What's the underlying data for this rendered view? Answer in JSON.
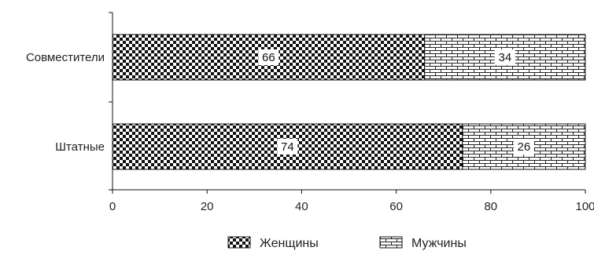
{
  "chart_data": {
    "type": "bar",
    "orientation": "horizontal",
    "stacked": true,
    "categories": [
      "Совместители",
      "Штатные"
    ],
    "series": [
      {
        "name": "Женщины",
        "values": [
          66,
          74
        ],
        "pattern": "checkerboard"
      },
      {
        "name": "Мужчины",
        "values": [
          34,
          26
        ],
        "pattern": "brick"
      }
    ],
    "data_labels": [
      [
        "66",
        "74"
      ],
      [
        "34",
        "26"
      ]
    ],
    "xlim": [
      0,
      100
    ],
    "xticks": [
      0,
      20,
      40,
      60,
      80,
      100
    ],
    "xtick_labels": [
      "0",
      "20",
      "40",
      "60",
      "80",
      "100"
    ],
    "xlabel": "",
    "ylabel": "",
    "title": "",
    "grid": false,
    "legend_position": "bottom",
    "colors": {
      "ink": "#111111",
      "background": "#ffffff"
    }
  }
}
